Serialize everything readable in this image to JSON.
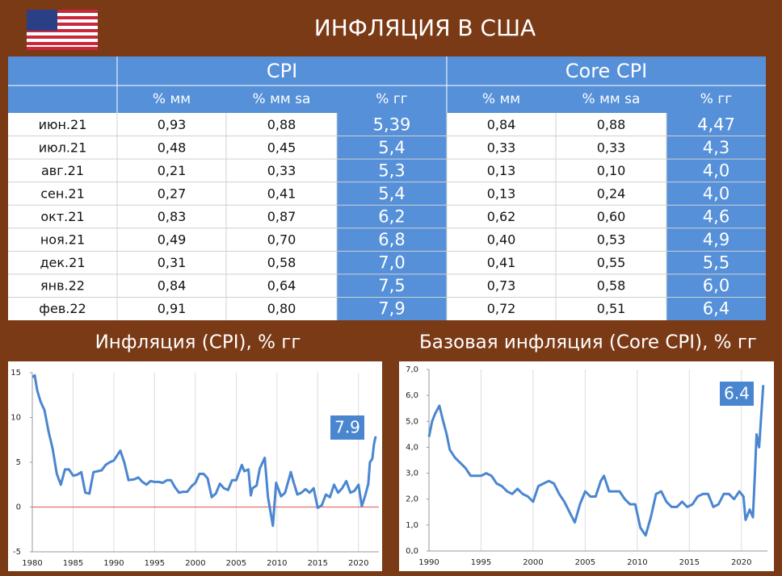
{
  "title": "ИНФЛЯЦИЯ В США",
  "table": {
    "groups": [
      "CPI",
      "Core CPI"
    ],
    "columns": [
      "% мм",
      "% мм sa",
      "% гг",
      "% мм",
      "% мм sa",
      "% гг"
    ],
    "rows": [
      [
        "июн.21",
        "0,93",
        "0,88",
        "5,39",
        "0,84",
        "0,88",
        "4,47"
      ],
      [
        "июл.21",
        "0,48",
        "0,45",
        "5,4",
        "0,33",
        "0,33",
        "4,3"
      ],
      [
        "авг.21",
        "0,21",
        "0,33",
        "5,3",
        "0,13",
        "0,10",
        "4,0"
      ],
      [
        "сен.21",
        "0,27",
        "0,41",
        "5,4",
        "0,13",
        "0,24",
        "4,0"
      ],
      [
        "окт.21",
        "0,83",
        "0,87",
        "6,2",
        "0,62",
        "0,60",
        "4,6"
      ],
      [
        "ноя.21",
        "0,49",
        "0,70",
        "6,8",
        "0,40",
        "0,53",
        "4,9"
      ],
      [
        "дек.21",
        "0,31",
        "0,58",
        "7,0",
        "0,41",
        "0,55",
        "5,5"
      ],
      [
        "янв.22",
        "0,84",
        "0,64",
        "7,5",
        "0,73",
        "0,58",
        "6,0"
      ],
      [
        "фев.22",
        "0,91",
        "0,80",
        "7,9",
        "0,72",
        "0,51",
        "6,4"
      ]
    ]
  },
  "chart_data": [
    {
      "type": "line",
      "title": "Инфляция (CPI), % гг",
      "color": "#4a86d0",
      "xlim": [
        1980,
        2022.5
      ],
      "xticks": [
        1980,
        1985,
        1990,
        1995,
        2000,
        2005,
        2010,
        2015,
        2020
      ],
      "ylim": [
        -5,
        15
      ],
      "yticks": [
        -5,
        0,
        5,
        10,
        15
      ],
      "grid": "x",
      "zero_line": true,
      "zero_line_color": "#e07070",
      "annotations": [
        {
          "label": "7.9"
        }
      ],
      "x": [
        1980.0,
        1980.3,
        1980.6,
        1981.0,
        1981.5,
        1982.0,
        1982.5,
        1983.0,
        1983.5,
        1984.0,
        1984.5,
        1985.0,
        1985.5,
        1986.0,
        1986.5,
        1987.0,
        1987.5,
        1988.0,
        1988.5,
        1989.0,
        1989.5,
        1990.0,
        1990.8,
        1991.3,
        1991.8,
        1992.5,
        1993.0,
        1993.5,
        1994.0,
        1994.5,
        1995.0,
        1995.5,
        1996.0,
        1996.5,
        1997.0,
        1997.5,
        1998.0,
        1998.5,
        1999.0,
        1999.5,
        2000.0,
        2000.5,
        2001.0,
        2001.5,
        2002.0,
        2002.5,
        2003.0,
        2003.5,
        2004.0,
        2004.5,
        2005.0,
        2005.7,
        2006.0,
        2006.5,
        2006.8,
        2007.0,
        2007.5,
        2007.9,
        2008.5,
        2008.9,
        2009.5,
        2009.9,
        2010.5,
        2011.0,
        2011.7,
        2012.0,
        2012.5,
        2013.0,
        2013.5,
        2014.0,
        2014.5,
        2015.0,
        2015.5,
        2016.0,
        2016.5,
        2017.0,
        2017.5,
        2018.0,
        2018.5,
        2019.0,
        2019.5,
        2020.0,
        2020.4,
        2020.8,
        2021.2,
        2021.4,
        2021.7,
        2021.9,
        2022.1
      ],
      "values": [
        14.5,
        14.7,
        13.0,
        11.8,
        10.8,
        8.4,
        6.5,
        3.7,
        2.5,
        4.2,
        4.2,
        3.5,
        3.6,
        3.9,
        1.6,
        1.5,
        3.9,
        4.0,
        4.1,
        4.7,
        5.0,
        5.2,
        6.3,
        4.9,
        3.0,
        3.1,
        3.3,
        2.8,
        2.5,
        2.9,
        2.8,
        2.8,
        2.7,
        3.0,
        3.0,
        2.2,
        1.6,
        1.7,
        1.7,
        2.3,
        2.7,
        3.7,
        3.7,
        3.2,
        1.1,
        1.5,
        2.6,
        2.1,
        1.9,
        3.0,
        3.0,
        4.7,
        4.0,
        4.2,
        1.3,
        2.1,
        2.4,
        4.3,
        5.5,
        1.1,
        -2.1,
        2.7,
        1.2,
        1.6,
        3.9,
        2.9,
        1.4,
        1.6,
        2.0,
        1.6,
        2.1,
        -0.1,
        0.2,
        1.4,
        1.1,
        2.5,
        1.6,
        2.1,
        2.9,
        1.6,
        1.8,
        2.5,
        0.1,
        1.2,
        2.6,
        5.0,
        5.4,
        7.0,
        7.9
      ]
    },
    {
      "type": "line",
      "title": "Базовая инфляция (Core CPI), % гг",
      "color": "#4a86d0",
      "xlim": [
        1990,
        2022.5
      ],
      "xticks": [
        1990,
        1995,
        2000,
        2005,
        2010,
        2015,
        2020
      ],
      "ylim": [
        0,
        7
      ],
      "yticks": [
        {
          "value": 0,
          "label": "0,0"
        },
        {
          "value": 1,
          "label": "1,0"
        },
        {
          "value": 2,
          "label": "2,0"
        },
        {
          "value": 3,
          "label": "3,0"
        },
        {
          "value": 4,
          "label": "4,0"
        },
        {
          "value": 5,
          "label": "5,0"
        },
        {
          "value": 6,
          "label": "6,0"
        },
        {
          "value": 7,
          "label": "7,0"
        }
      ],
      "grid": "x",
      "zero_line": false,
      "annotations": [
        {
          "label": "6.4"
        }
      ],
      "x": [
        1990.0,
        1990.3,
        1990.6,
        1991.0,
        1991.3,
        1991.7,
        1992.0,
        1992.5,
        1993.0,
        1993.5,
        1994.0,
        1994.5,
        1995.0,
        1995.5,
        1996.0,
        1996.5,
        1997.0,
        1997.5,
        1998.0,
        1998.5,
        1999.0,
        1999.5,
        2000.0,
        2000.5,
        2001.0,
        2001.5,
        2002.0,
        2002.5,
        2003.0,
        2003.5,
        2004.0,
        2004.5,
        2005.0,
        2005.5,
        2006.0,
        2006.5,
        2006.8,
        2007.3,
        2007.8,
        2008.3,
        2008.8,
        2009.3,
        2009.8,
        2010.3,
        2010.8,
        2011.3,
        2011.8,
        2012.3,
        2012.8,
        2013.3,
        2013.8,
        2014.3,
        2014.8,
        2015.3,
        2015.8,
        2016.3,
        2016.8,
        2017.3,
        2017.8,
        2018.3,
        2018.8,
        2019.3,
        2019.8,
        2020.2,
        2020.4,
        2020.8,
        2021.1,
        2021.3,
        2021.45,
        2021.7,
        2021.85,
        2022.1
      ],
      "values": [
        4.4,
        5.0,
        5.3,
        5.6,
        5.1,
        4.5,
        3.9,
        3.6,
        3.4,
        3.2,
        2.9,
        2.9,
        2.9,
        3.0,
        2.9,
        2.6,
        2.5,
        2.3,
        2.2,
        2.4,
        2.2,
        2.1,
        1.9,
        2.5,
        2.6,
        2.7,
        2.6,
        2.2,
        1.9,
        1.5,
        1.1,
        1.8,
        2.3,
        2.1,
        2.1,
        2.7,
        2.9,
        2.3,
        2.3,
        2.3,
        2.0,
        1.8,
        1.8,
        0.9,
        0.6,
        1.3,
        2.2,
        2.3,
        1.9,
        1.7,
        1.7,
        1.9,
        1.7,
        1.8,
        2.1,
        2.2,
        2.2,
        1.7,
        1.8,
        2.2,
        2.2,
        2.0,
        2.3,
        2.1,
        1.2,
        1.6,
        1.3,
        3.0,
        4.5,
        4.0,
        4.9,
        6.4
      ]
    }
  ]
}
